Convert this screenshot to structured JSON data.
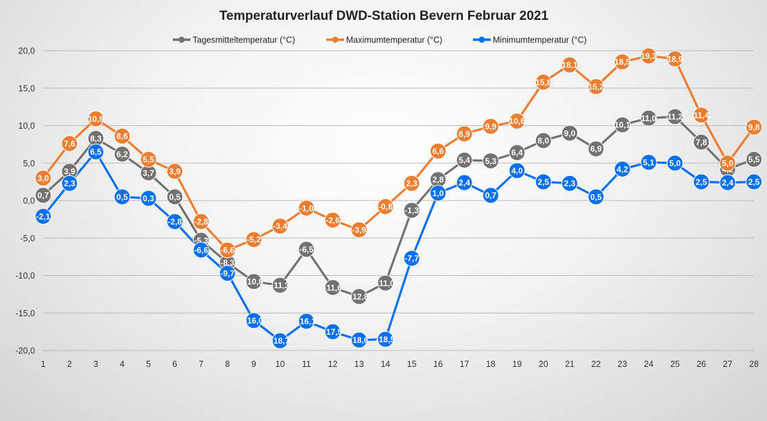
{
  "chart_data": {
    "type": "line",
    "title": "Temperaturverlauf  DWD-Station  Bevern Februar 2021",
    "xlabel": "",
    "ylabel": "",
    "x": [
      1,
      2,
      3,
      4,
      5,
      6,
      7,
      8,
      9,
      10,
      11,
      12,
      13,
      14,
      15,
      16,
      17,
      18,
      19,
      20,
      21,
      22,
      23,
      24,
      25,
      26,
      27,
      28
    ],
    "ylim": [
      -20,
      20
    ],
    "yticks": [
      20,
      15,
      10,
      5,
      0,
      -5,
      -10,
      -15,
      -20
    ],
    "ytick_labels": [
      "20,0",
      "15,0",
      "10,0",
      "5,0",
      "0,0",
      "-5,0",
      "-10,0",
      "-15,0",
      "-20,0"
    ],
    "grid": true,
    "legend_position": "top-center",
    "series": [
      {
        "name": "Tagesmitteltemperatur (°C)",
        "color": "#767171",
        "values": [
          0.7,
          3.9,
          8.3,
          6.2,
          3.7,
          0.5,
          -5.3,
          -8.3,
          -10.8,
          -11.3,
          -6.5,
          -11.6,
          -12.8,
          -11.0,
          -1.3,
          2.8,
          5.4,
          5.3,
          6.4,
          8.0,
          9.0,
          6.9,
          10.1,
          11.0,
          11.2,
          7.8,
          4.2,
          5.5
        ],
        "labels": [
          "0,7",
          "3,9",
          "8,3",
          "6,2",
          "3,7",
          "0,5",
          "-5,3",
          "-8,3",
          "-10,8",
          "-11,3",
          "-6,5",
          "-11,6",
          "-12,8",
          "-11,0",
          "-1,3",
          "2,8",
          "5,4",
          "5,3",
          "6,4",
          "8,0",
          "9,0",
          "6,9",
          "10,1",
          "11,0",
          "11,2",
          "7,8",
          "4,2",
          "5,5"
        ]
      },
      {
        "name": "Maximumtemperatur (°C)",
        "color": "#ED7D31",
        "values": [
          3.0,
          7.6,
          10.9,
          8.6,
          5.5,
          3.9,
          -2.8,
          -6.6,
          -5.2,
          -3.4,
          -1.0,
          -2.6,
          -3.9,
          -0.8,
          2.3,
          6.6,
          8.9,
          9.9,
          10.6,
          15.8,
          18.1,
          15.2,
          18.5,
          19.3,
          18.9,
          11.4,
          5.0,
          9.8
        ],
        "labels": [
          "3,0",
          "7,6",
          "10,9",
          "8,6",
          "5,5",
          "3,9",
          "-2,8",
          "-6,6",
          "-5,2",
          "-3,4",
          "-1,0",
          "-2,6",
          "-3,9",
          "-0,8",
          "2,3",
          "6,6",
          "8,9",
          "9,9",
          "10,6",
          "15,8",
          "18,1",
          "15,2",
          "18,5",
          "19,3",
          "18,9",
          "11,4",
          "5,0",
          "9,8"
        ]
      },
      {
        "name": "Minimumtemperatur (°C)",
        "color": "#0070F0",
        "values": [
          -2.1,
          2.3,
          6.5,
          0.5,
          0.3,
          -2.8,
          -6.6,
          -9.7,
          -16.0,
          -18.7,
          -16.1,
          -17.5,
          -18.6,
          -18.5,
          -7.7,
          1.0,
          2.4,
          0.7,
          4.0,
          2.5,
          2.3,
          0.5,
          4.2,
          5.1,
          5.0,
          2.5,
          2.4,
          2.5
        ],
        "labels": [
          "-2,1",
          "2,3",
          "6,5",
          "0,5",
          "0,3",
          "-2,8",
          "-6,6",
          "-9,7",
          "-16,0",
          "-18,7",
          "-16,1",
          "-17,5",
          "-18,6",
          "-18,5",
          "-7,7",
          "1,0",
          "2,4",
          "0,7",
          "4,0",
          "2,5",
          "2,3",
          "0,5",
          "4,2",
          "5,1",
          "5,0",
          "2,5",
          "2,4",
          "2,5"
        ]
      }
    ]
  }
}
